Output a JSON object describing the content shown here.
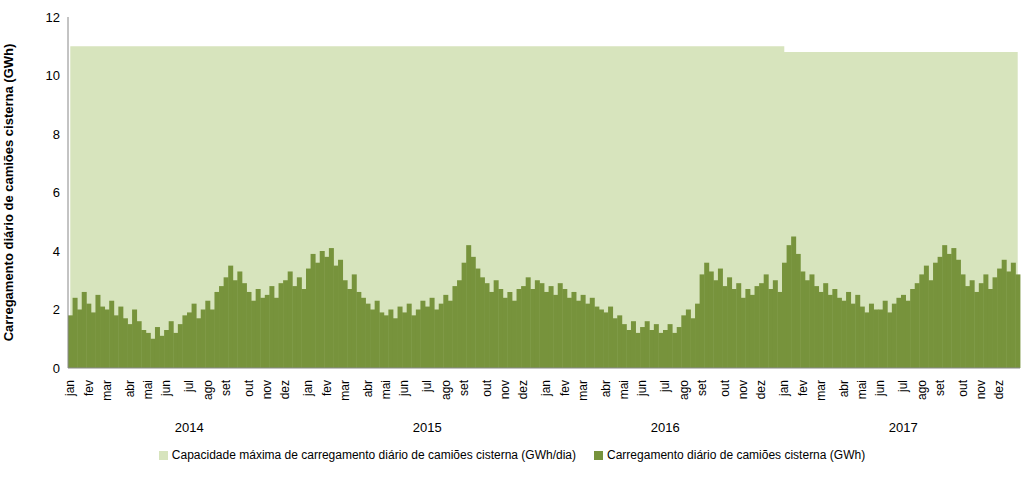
{
  "chart_data": {
    "type": "bar",
    "y_label": "Carregamento diário de camiões cisterna (GWh)",
    "ylim": [
      0,
      12
    ],
    "yticks": [
      0,
      2,
      4,
      6,
      8,
      10,
      12
    ],
    "x_groups": [
      "2014",
      "2015",
      "2016",
      "2017"
    ],
    "categories": [
      "jan",
      null,
      null,
      null,
      "fev",
      null,
      null,
      null,
      "mar",
      null,
      null,
      null,
      null,
      "abr",
      null,
      null,
      null,
      "mai",
      null,
      null,
      null,
      "jun",
      null,
      null,
      null,
      null,
      "jul",
      null,
      null,
      null,
      "ago",
      null,
      null,
      null,
      "set",
      null,
      null,
      null,
      null,
      "out",
      null,
      null,
      null,
      "nov",
      null,
      null,
      null,
      "dez",
      null,
      null,
      null,
      null,
      "jan",
      null,
      null,
      null,
      "fev",
      null,
      null,
      null,
      "mar",
      null,
      null,
      null,
      null,
      "abr",
      null,
      null,
      null,
      "mai",
      null,
      null,
      null,
      "jun",
      null,
      null,
      null,
      null,
      "jul",
      null,
      null,
      null,
      "ago",
      null,
      null,
      null,
      "set",
      null,
      null,
      null,
      null,
      "out",
      null,
      null,
      null,
      "nov",
      null,
      null,
      null,
      "dez",
      null,
      null,
      null,
      null,
      "jan",
      null,
      null,
      null,
      "fev",
      null,
      null,
      null,
      "mar",
      null,
      null,
      null,
      null,
      "abr",
      null,
      null,
      null,
      "mai",
      null,
      null,
      null,
      "jun",
      null,
      null,
      null,
      null,
      "jul",
      null,
      null,
      null,
      "ago",
      null,
      null,
      null,
      "set",
      null,
      null,
      null,
      null,
      "out",
      null,
      null,
      null,
      "nov",
      null,
      null,
      null,
      "dez",
      null,
      null,
      null,
      null,
      "jan",
      null,
      null,
      null,
      "fev",
      null,
      null,
      null,
      "mar",
      null,
      null,
      null,
      null,
      "abr",
      null,
      null,
      null,
      "mai",
      null,
      null,
      null,
      "jun",
      null,
      null,
      null,
      null,
      "jul",
      null,
      null,
      null,
      "ago",
      null,
      null,
      null,
      "set",
      null,
      null,
      null,
      null,
      "out",
      null,
      null,
      null,
      "nov",
      null,
      null,
      null,
      "dez",
      null,
      null,
      null,
      null
    ],
    "series": [
      {
        "name": "Capacidade máxima de carregamento diário de camiões cisterna (GWh/dia)",
        "color": "#d7e4bd",
        "type": "area",
        "values": [
          11,
          11,
          11,
          11,
          11,
          11,
          11,
          11,
          11,
          11,
          11,
          11,
          11,
          11,
          11,
          11,
          11,
          11,
          11,
          11,
          11,
          11,
          11,
          11,
          11,
          11,
          11,
          11,
          11,
          11,
          11,
          11,
          11,
          11,
          11,
          11,
          11,
          11,
          11,
          11,
          11,
          11,
          11,
          11,
          11,
          11,
          11,
          11,
          11,
          11,
          11,
          11,
          11,
          11,
          11,
          11,
          11,
          11,
          11,
          11,
          11,
          11,
          11,
          11,
          11,
          11,
          11,
          11,
          11,
          11,
          11,
          11,
          11,
          11,
          11,
          11,
          11,
          11,
          11,
          11,
          11,
          11,
          11,
          11,
          11,
          11,
          11,
          11,
          11,
          11,
          11,
          11,
          11,
          11,
          11,
          11,
          11,
          11,
          11,
          11,
          11,
          11,
          11,
          11,
          11,
          11,
          11,
          11,
          11,
          11,
          11,
          11,
          11,
          11,
          11,
          11,
          11,
          11,
          11,
          11,
          11,
          11,
          11,
          11,
          11,
          11,
          11,
          11,
          11,
          11,
          11,
          11,
          11,
          11,
          11,
          11,
          11,
          11,
          11,
          11,
          11,
          11,
          11,
          11,
          11,
          11,
          11,
          11,
          11,
          11,
          11,
          11,
          11,
          11,
          11,
          11,
          10.8,
          10.8,
          10.8,
          10.8,
          10.8,
          10.8,
          10.8,
          10.8,
          10.8,
          10.8,
          10.8,
          10.8,
          10.8,
          10.8,
          10.8,
          10.8,
          10.8,
          10.8,
          10.8,
          10.8,
          10.8,
          10.8,
          10.8,
          10.8,
          10.8,
          10.8,
          10.8,
          10.8,
          10.8,
          10.8,
          10.8,
          10.8,
          10.8,
          10.8,
          10.8,
          10.8,
          10.8,
          10.8,
          10.8,
          10.8,
          10.8,
          10.8,
          10.8,
          10.8,
          10.8,
          10.8,
          10.8,
          10.8,
          10.8,
          10.8,
          10.8,
          10.8
        ]
      },
      {
        "name": "Carregamento diário de camiões cisterna (GWh)",
        "color": "#77933c",
        "type": "bar",
        "values": [
          1.8,
          2.4,
          2.0,
          2.6,
          2.2,
          1.9,
          2.5,
          2.1,
          2.0,
          2.3,
          1.8,
          2.1,
          1.7,
          1.5,
          2.0,
          1.6,
          1.3,
          1.2,
          1.0,
          1.4,
          1.1,
          1.3,
          1.6,
          1.2,
          1.5,
          1.8,
          1.9,
          2.2,
          1.7,
          2.0,
          2.3,
          2.0,
          2.6,
          2.8,
          3.1,
          3.5,
          3.0,
          3.3,
          2.9,
          2.6,
          2.3,
          2.7,
          2.4,
          2.5,
          2.8,
          2.4,
          2.9,
          3.0,
          3.3,
          2.8,
          3.1,
          2.7,
          3.4,
          3.9,
          3.6,
          4.0,
          3.8,
          4.1,
          3.5,
          3.7,
          3.0,
          2.7,
          3.2,
          2.6,
          2.4,
          2.2,
          2.0,
          2.3,
          1.9,
          1.8,
          2.0,
          1.7,
          2.1,
          1.9,
          2.2,
          1.8,
          2.0,
          2.3,
          2.1,
          2.4,
          2.0,
          2.2,
          2.5,
          2.3,
          2.8,
          3.0,
          3.6,
          4.2,
          3.8,
          3.4,
          3.1,
          2.9,
          2.6,
          3.0,
          2.7,
          2.4,
          2.6,
          2.3,
          2.7,
          2.8,
          3.1,
          2.7,
          3.0,
          2.9,
          2.6,
          2.8,
          2.5,
          2.9,
          2.7,
          2.4,
          2.6,
          2.3,
          2.5,
          2.2,
          2.4,
          2.1,
          2.0,
          1.9,
          2.1,
          1.7,
          1.8,
          1.5,
          1.3,
          1.6,
          1.2,
          1.4,
          1.6,
          1.3,
          1.5,
          1.2,
          1.3,
          1.5,
          1.2,
          1.4,
          1.8,
          2.0,
          1.7,
          2.2,
          3.2,
          3.6,
          3.3,
          3.0,
          3.4,
          2.8,
          3.1,
          2.7,
          2.9,
          2.4,
          2.7,
          2.5,
          2.8,
          2.9,
          3.2,
          2.7,
          3.0,
          2.6,
          3.6,
          4.2,
          4.5,
          3.9,
          3.3,
          3.0,
          3.2,
          2.8,
          2.6,
          2.9,
          2.5,
          2.7,
          2.4,
          2.3,
          2.6,
          2.2,
          2.5,
          2.1,
          1.9,
          2.2,
          2.0,
          2.0,
          2.3,
          1.9,
          2.2,
          2.4,
          2.5,
          2.3,
          2.7,
          2.9,
          3.2,
          3.5,
          3.0,
          3.6,
          3.8,
          4.2,
          3.9,
          4.1,
          3.7,
          3.2,
          2.8,
          3.0,
          2.6,
          2.9,
          3.2,
          2.7,
          3.1,
          3.4,
          3.7,
          3.3,
          3.6,
          3.2
        ]
      }
    ]
  }
}
